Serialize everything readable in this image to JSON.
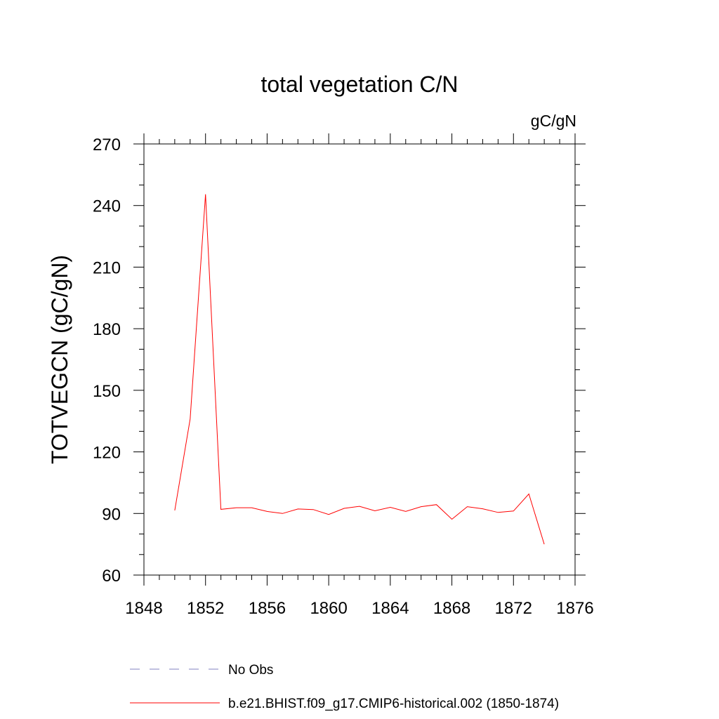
{
  "chart_data": {
    "type": "line",
    "title": "total vegetation C/N",
    "units_label": "gC/gN",
    "xlabel": "",
    "ylabel": "TOTVEGCN  (gC/gN)",
    "xlim": [
      1848,
      1876
    ],
    "ylim": [
      60,
      270
    ],
    "x_ticks": [
      1848,
      1852,
      1856,
      1860,
      1864,
      1868,
      1872,
      1876
    ],
    "x_minor_step": 1,
    "y_ticks": [
      60,
      90,
      120,
      150,
      180,
      210,
      240,
      270
    ],
    "y_minor_step": 10,
    "grid": false,
    "legend_position": "bottom-left",
    "series": [
      {
        "name": "b.e21.BHIST.f09_g17.CMIP6-historical.002 (1850-1874)",
        "color": "#ff0000",
        "dash": "solid",
        "x": [
          1850,
          1851,
          1852,
          1853,
          1854,
          1855,
          1856,
          1857,
          1858,
          1859,
          1860,
          1861,
          1862,
          1863,
          1864,
          1865,
          1866,
          1867,
          1868,
          1869,
          1870,
          1871,
          1872,
          1873,
          1874
        ],
        "values": [
          91.5,
          136,
          245.5,
          92,
          92.8,
          92.8,
          91,
          90,
          92.2,
          91.9,
          89.5,
          92.5,
          93.5,
          91.3,
          93,
          91,
          93.3,
          94.3,
          87.2,
          93.3,
          92.3,
          90.5,
          91.2,
          99.5,
          75
        ]
      }
    ],
    "legend": [
      {
        "label": "No Obs",
        "color": "#8080c0",
        "dash": "dashed"
      },
      {
        "label": "b.e21.BHIST.f09_g17.CMIP6-historical.002 (1850-1874)",
        "color": "#ff0000",
        "dash": "solid"
      }
    ]
  }
}
